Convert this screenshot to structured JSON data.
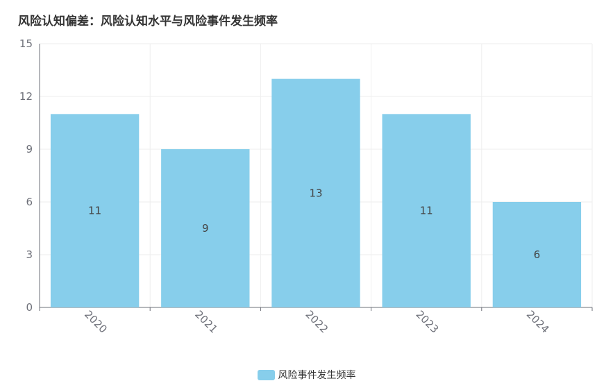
{
  "title": "风险认知偏差：风险认知水平与风险事件发生频率",
  "colors": {
    "bar": "#87ceeb",
    "axis": "#6e7079",
    "grid": "#eeeeee"
  },
  "chart_data": {
    "type": "bar",
    "title": "风险认知偏差：风险认知水平与风险事件发生频率",
    "categories": [
      "2020",
      "2021",
      "2022",
      "2023",
      "2024"
    ],
    "series": [
      {
        "name": "风险事件发生频率",
        "values": [
          11,
          9,
          13,
          11,
          6
        ]
      }
    ],
    "yticks": [
      0,
      3,
      6,
      9,
      12,
      15
    ],
    "ylim": [
      0,
      15
    ],
    "xlabel": "",
    "ylabel": "",
    "grid": true,
    "legend": "bottom-center",
    "data_labels": "inside-center"
  }
}
